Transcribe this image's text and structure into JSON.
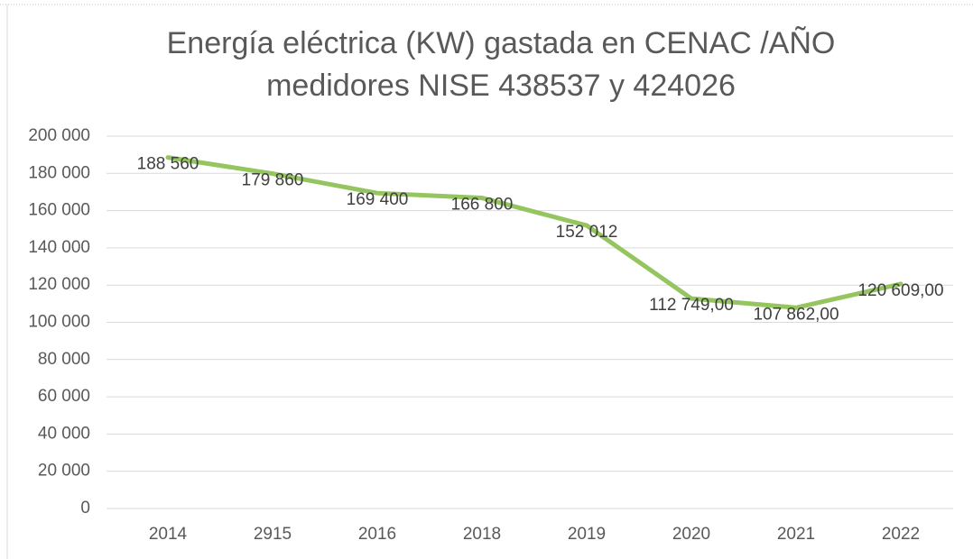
{
  "chart_data": {
    "type": "line",
    "title": [
      "Energía eléctrica (KW) gastada en CENAC /AÑO",
      "medidores NISE 438537 y 424026"
    ],
    "categories": [
      "2014",
      "2915",
      "2016",
      "2018",
      "2019",
      "2020",
      "2021",
      "2022"
    ],
    "series": [
      {
        "name": "Energía eléctrica (KW)",
        "color": "#95c55f",
        "values": [
          188560,
          179860,
          169400,
          166800,
          152012,
          112749,
          107862,
          120609
        ],
        "value_labels": [
          "188 560",
          "179 860",
          "169 400",
          "166 800",
          "152 012",
          "112 749,00",
          "107 862,00",
          "120 609,00"
        ]
      }
    ],
    "ylim": [
      0,
      200000
    ],
    "yticks": [
      0,
      {
        "value": 20000,
        "label": "20 000"
      },
      {
        "value": 40000,
        "label": "40 000"
      },
      {
        "value": 60000,
        "label": "60 000"
      },
      {
        "value": 80000,
        "label": "80 000"
      },
      {
        "value": 100000,
        "label": "100 000"
      },
      {
        "value": 120000,
        "label": "120 000"
      },
      {
        "value": 140000,
        "label": "140 000"
      },
      {
        "value": 160000,
        "label": "160 000"
      },
      {
        "value": 180000,
        "label": "180 000"
      },
      {
        "value": 200000,
        "label": "200 000"
      }
    ],
    "grid": true
  }
}
